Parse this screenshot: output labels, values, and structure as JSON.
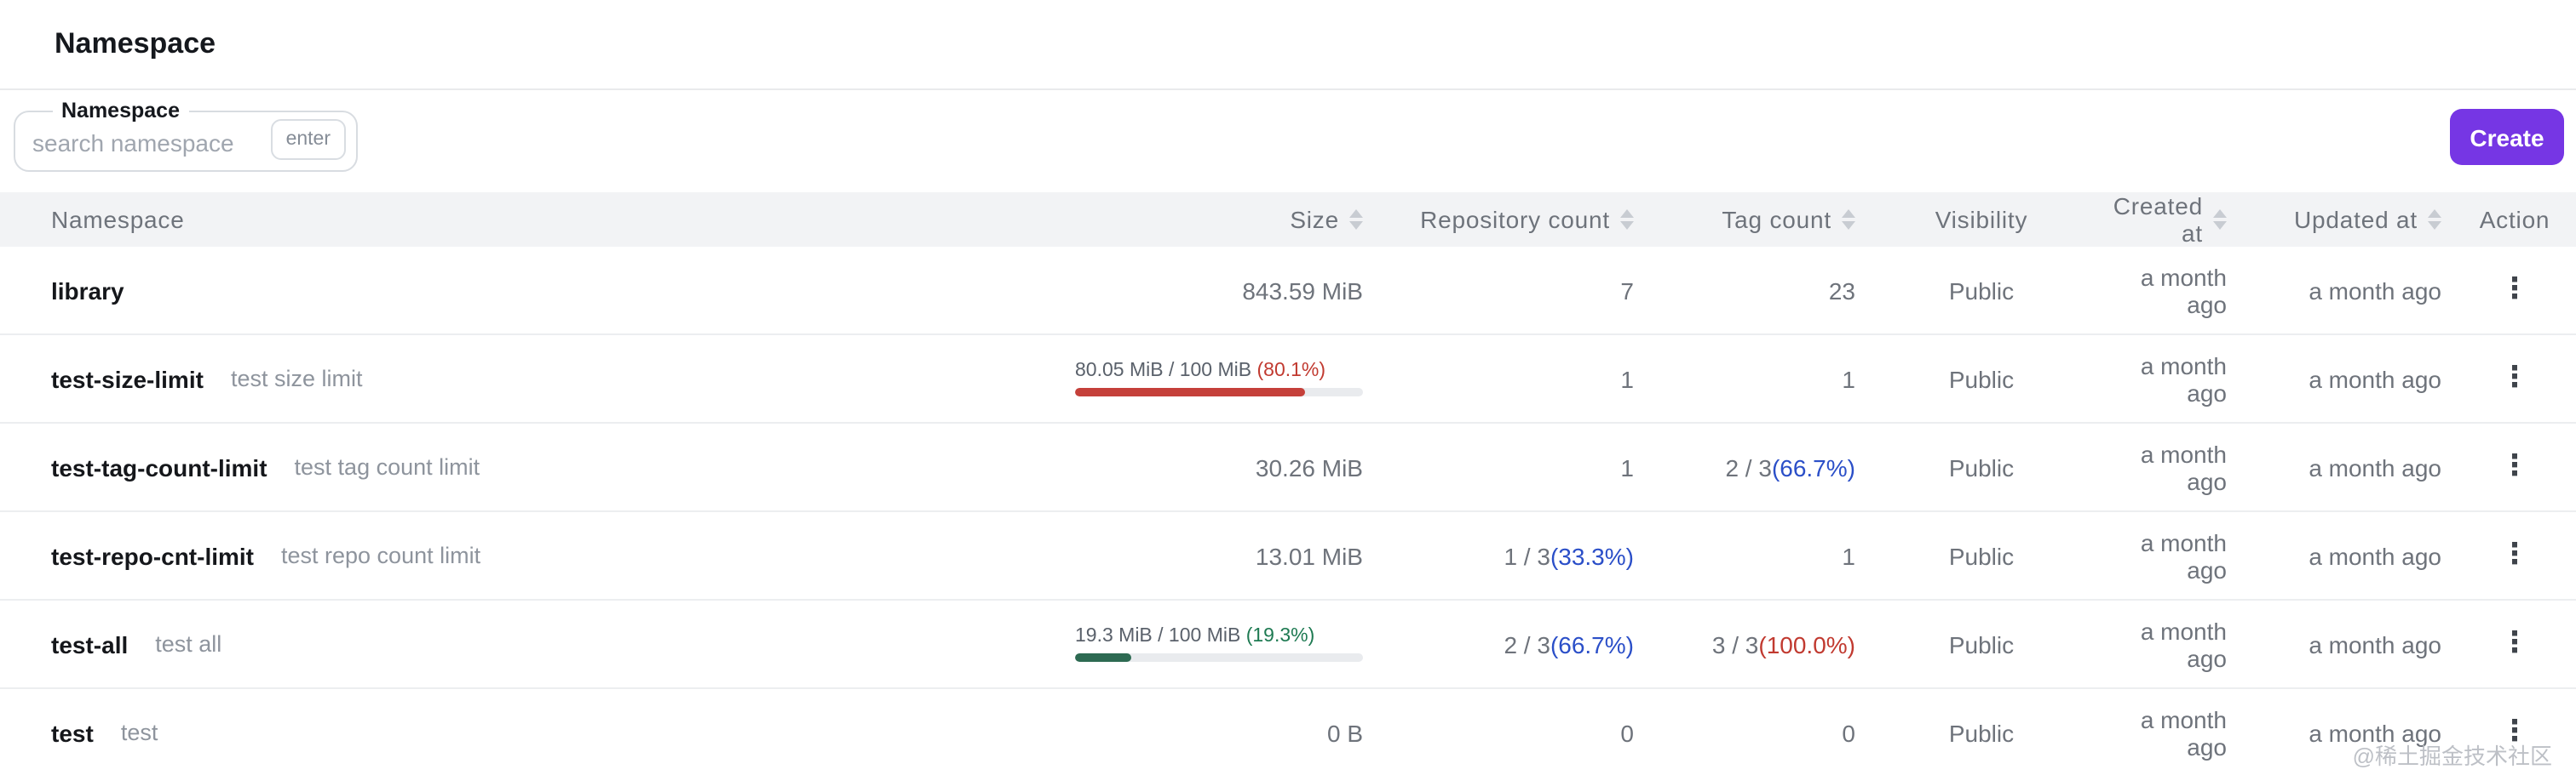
{
  "page": {
    "title": "Namespace"
  },
  "toolbar": {
    "search": {
      "label": "Namespace",
      "placeholder": "search namespace",
      "enter_hint": "enter"
    },
    "create_label": "Create"
  },
  "icons": {
    "kebab_menu": "⋮",
    "sort": "sort-arrows"
  },
  "colors": {
    "accent": "#7636e4",
    "text_red": "#c13a30",
    "text_blue": "#2b4fc8",
    "text_green": "#1e7a52",
    "bar_red": "#c5403a",
    "bar_green": "#2d6a52",
    "bar_track": "#e9ebee"
  },
  "table": {
    "columns": [
      {
        "key": "namespace",
        "label": "Namespace",
        "sortable": false
      },
      {
        "key": "size",
        "label": "Size",
        "sortable": true
      },
      {
        "key": "repository_count",
        "label": "Repository count",
        "sortable": true
      },
      {
        "key": "tag_count",
        "label": "Tag count",
        "sortable": true
      },
      {
        "key": "visibility",
        "label": "Visibility",
        "sortable": false
      },
      {
        "key": "created_at",
        "label": "Created at",
        "sortable": true
      },
      {
        "key": "updated_at",
        "label": "Updated at",
        "sortable": true
      },
      {
        "key": "action",
        "label": "Action",
        "sortable": false
      }
    ],
    "rows": [
      {
        "name": "library",
        "description": "",
        "size": {
          "type": "plain",
          "text": "843.59 MiB"
        },
        "repository_count": {
          "type": "plain",
          "text": "7"
        },
        "tag_count": {
          "type": "plain",
          "text": "23"
        },
        "visibility": "Public",
        "created_at": "a month ago",
        "updated_at": "a month ago"
      },
      {
        "name": "test-size-limit",
        "description": "test size limit",
        "size": {
          "type": "limited",
          "text": "80.05 MiB / 100 MiB ",
          "percent_text": "(80.1%)",
          "percent": 80.1,
          "color": "red"
        },
        "repository_count": {
          "type": "plain",
          "text": "1"
        },
        "tag_count": {
          "type": "plain",
          "text": "1"
        },
        "visibility": "Public",
        "created_at": "a month ago",
        "updated_at": "a month ago"
      },
      {
        "name": "test-tag-count-limit",
        "description": "test tag count limit",
        "size": {
          "type": "plain",
          "text": "30.26 MiB"
        },
        "repository_count": {
          "type": "plain",
          "text": "1"
        },
        "tag_count": {
          "type": "fraction",
          "text": "2 / 3 ",
          "percent_text": "(66.7%)",
          "color": "blue"
        },
        "visibility": "Public",
        "created_at": "a month ago",
        "updated_at": "a month ago"
      },
      {
        "name": "test-repo-cnt-limit",
        "description": "test repo count limit",
        "size": {
          "type": "plain",
          "text": "13.01 MiB"
        },
        "repository_count": {
          "type": "fraction",
          "text": "1 / 3 ",
          "percent_text": "(33.3%)",
          "color": "blue"
        },
        "tag_count": {
          "type": "plain",
          "text": "1"
        },
        "visibility": "Public",
        "created_at": "a month ago",
        "updated_at": "a month ago"
      },
      {
        "name": "test-all",
        "description": "test all",
        "size": {
          "type": "limited",
          "text": "19.3 MiB / 100 MiB ",
          "percent_text": "(19.3%)",
          "percent": 19.3,
          "color": "green"
        },
        "repository_count": {
          "type": "fraction",
          "text": "2 / 3 ",
          "percent_text": "(66.7%)",
          "color": "blue"
        },
        "tag_count": {
          "type": "fraction",
          "text": "3 / 3 ",
          "percent_text": "(100.0%)",
          "color": "red"
        },
        "visibility": "Public",
        "created_at": "a month ago",
        "updated_at": "a month ago"
      },
      {
        "name": "test",
        "description": "test",
        "size": {
          "type": "plain",
          "text": "0 B"
        },
        "repository_count": {
          "type": "plain",
          "text": "0"
        },
        "tag_count": {
          "type": "plain",
          "text": "0"
        },
        "visibility": "Public",
        "created_at": "a month ago",
        "updated_at": "a month ago"
      }
    ]
  },
  "watermark": "@稀土掘金技术社区"
}
